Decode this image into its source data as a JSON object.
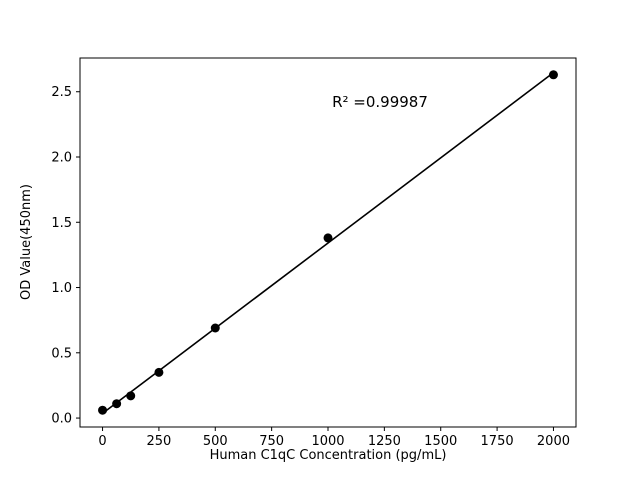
{
  "chart_data": {
    "type": "scatter",
    "title": "",
    "xlabel": "Human C1qC Concentration (pg/mL)",
    "ylabel": "OD Value(450nm)",
    "annotation": "R² =0.99987",
    "x": [
      0,
      62.5,
      125,
      250,
      500,
      1000,
      2000
    ],
    "y": [
      0.06,
      0.11,
      0.17,
      0.35,
      0.69,
      1.38,
      2.63
    ],
    "xticks": [
      0,
      250,
      500,
      750,
      1000,
      1250,
      1500,
      1750,
      2000
    ],
    "yticks": [
      0.0,
      0.5,
      1.0,
      1.5,
      2.0,
      2.5
    ],
    "xlim": [
      -100,
      2100
    ],
    "ylim": [
      -0.0685,
      2.7585
    ],
    "fit_line": true,
    "legend": "none",
    "grid": false,
    "point_color": "#000000",
    "line_color": "#000000",
    "background_color": "#ffffff"
  }
}
